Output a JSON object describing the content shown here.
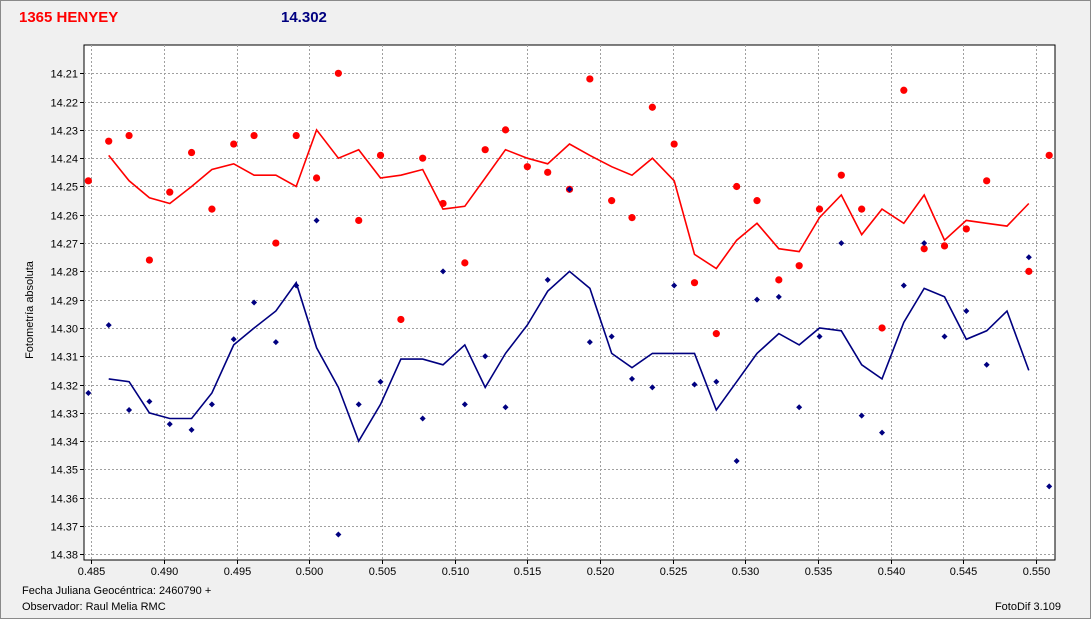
{
  "header": {
    "star_name": "1365 HENYEY",
    "reference_mag": "14.302"
  },
  "footer": {
    "jd_label": "Fecha Juliana Geocéntrica: 2460790 +",
    "observer_label": "Observador: Raul Melia RMC",
    "software_label": "FotoDif 3.109"
  },
  "colors": {
    "red_series": "#ff0000",
    "blue_series": "#000080",
    "grid": "#a0a0a0",
    "plot_background": "#ffffff"
  },
  "chart_data": {
    "type": "scatter",
    "title": "",
    "xlabel": "",
    "ylabel": "Fotometría absoluta",
    "xlim": [
      0.4845,
      0.5513
    ],
    "ylim": [
      14.2,
      14.382
    ],
    "y_inverted": true,
    "grid": true,
    "x_ticks": [
      "0.485",
      "0.490",
      "0.495",
      "0.500",
      "0.505",
      "0.510",
      "0.515",
      "0.520",
      "0.525",
      "0.530",
      "0.535",
      "0.540",
      "0.545",
      "0.550"
    ],
    "y_ticks": [
      "14.21",
      "14.22",
      "14.23",
      "14.24",
      "14.25",
      "14.26",
      "14.27",
      "14.28",
      "14.29",
      "14.30",
      "14.31",
      "14.32",
      "14.33",
      "14.34",
      "14.35",
      "14.36",
      "14.37",
      "14.38"
    ],
    "series": [
      {
        "color": "#ff0000",
        "marker": "circle",
        "points": [
          [
            0.4848,
            14.248
          ],
          [
            0.4862,
            14.234
          ],
          [
            0.4876,
            14.232
          ],
          [
            0.489,
            14.276
          ],
          [
            0.4904,
            14.252
          ],
          [
            0.4919,
            14.238
          ],
          [
            0.4933,
            14.258
          ],
          [
            0.4948,
            14.235
          ],
          [
            0.4962,
            14.232
          ],
          [
            0.4977,
            14.27
          ],
          [
            0.4991,
            14.232
          ],
          [
            0.5005,
            14.247
          ],
          [
            0.502,
            14.21
          ],
          [
            0.5034,
            14.262
          ],
          [
            0.5049,
            14.239
          ],
          [
            0.5063,
            14.297
          ],
          [
            0.5078,
            14.24
          ],
          [
            0.5092,
            14.256
          ],
          [
            0.5107,
            14.277
          ],
          [
            0.5121,
            14.237
          ],
          [
            0.5135,
            14.23
          ],
          [
            0.515,
            14.243
          ],
          [
            0.5164,
            14.245
          ],
          [
            0.5179,
            14.251
          ],
          [
            0.5193,
            14.212
          ],
          [
            0.5208,
            14.255
          ],
          [
            0.5222,
            14.261
          ],
          [
            0.5236,
            14.222
          ],
          [
            0.5251,
            14.235
          ],
          [
            0.5265,
            14.284
          ],
          [
            0.528,
            14.302
          ],
          [
            0.5294,
            14.25
          ],
          [
            0.5308,
            14.255
          ],
          [
            0.5323,
            14.283
          ],
          [
            0.5337,
            14.278
          ],
          [
            0.5351,
            14.258
          ],
          [
            0.5366,
            14.246
          ],
          [
            0.538,
            14.258
          ],
          [
            0.5394,
            14.3
          ],
          [
            0.5409,
            14.216
          ],
          [
            0.5423,
            14.272
          ],
          [
            0.5437,
            14.271
          ],
          [
            0.5452,
            14.265
          ],
          [
            0.5466,
            14.248
          ],
          [
            0.5495,
            14.28
          ],
          [
            0.5509,
            14.239
          ]
        ],
        "trend": [
          [
            0.4862,
            14.239
          ],
          [
            0.4876,
            14.248
          ],
          [
            0.489,
            14.254
          ],
          [
            0.4904,
            14.256
          ],
          [
            0.4919,
            14.25
          ],
          [
            0.4933,
            14.244
          ],
          [
            0.4948,
            14.242
          ],
          [
            0.4962,
            14.246
          ],
          [
            0.4977,
            14.246
          ],
          [
            0.4991,
            14.25
          ],
          [
            0.5005,
            14.23
          ],
          [
            0.502,
            14.24
          ],
          [
            0.5034,
            14.237
          ],
          [
            0.5049,
            14.247
          ],
          [
            0.5063,
            14.246
          ],
          [
            0.5078,
            14.244
          ],
          [
            0.5092,
            14.258
          ],
          [
            0.5107,
            14.257
          ],
          [
            0.5121,
            14.247
          ],
          [
            0.5135,
            14.237
          ],
          [
            0.515,
            14.24
          ],
          [
            0.5164,
            14.242
          ],
          [
            0.5179,
            14.235
          ],
          [
            0.5193,
            14.239
          ],
          [
            0.5208,
            14.243
          ],
          [
            0.5222,
            14.246
          ],
          [
            0.5236,
            14.24
          ],
          [
            0.5251,
            14.248
          ],
          [
            0.5265,
            14.274
          ],
          [
            0.528,
            14.279
          ],
          [
            0.5294,
            14.269
          ],
          [
            0.5308,
            14.263
          ],
          [
            0.5323,
            14.272
          ],
          [
            0.5337,
            14.273
          ],
          [
            0.5351,
            14.261
          ],
          [
            0.5366,
            14.253
          ],
          [
            0.538,
            14.267
          ],
          [
            0.5394,
            14.258
          ],
          [
            0.5409,
            14.263
          ],
          [
            0.5423,
            14.253
          ],
          [
            0.5437,
            14.269
          ],
          [
            0.5452,
            14.262
          ],
          [
            0.5466,
            14.263
          ],
          [
            0.548,
            14.264
          ],
          [
            0.5495,
            14.256
          ]
        ]
      },
      {
        "color": "#000080",
        "marker": "diamond",
        "points": [
          [
            0.4848,
            14.323
          ],
          [
            0.4862,
            14.299
          ],
          [
            0.4876,
            14.329
          ],
          [
            0.489,
            14.326
          ],
          [
            0.4904,
            14.334
          ],
          [
            0.4919,
            14.336
          ],
          [
            0.4933,
            14.327
          ],
          [
            0.4948,
            14.304
          ],
          [
            0.4962,
            14.291
          ],
          [
            0.4977,
            14.305
          ],
          [
            0.4991,
            14.285
          ],
          [
            0.5005,
            14.262
          ],
          [
            0.502,
            14.373
          ],
          [
            0.5034,
            14.327
          ],
          [
            0.5049,
            14.319
          ],
          [
            0.5078,
            14.332
          ],
          [
            0.5092,
            14.28
          ],
          [
            0.5107,
            14.327
          ],
          [
            0.5121,
            14.31
          ],
          [
            0.5135,
            14.328
          ],
          [
            0.5164,
            14.283
          ],
          [
            0.5179,
            14.251
          ],
          [
            0.5193,
            14.305
          ],
          [
            0.5208,
            14.303
          ],
          [
            0.5222,
            14.318
          ],
          [
            0.5236,
            14.321
          ],
          [
            0.5251,
            14.285
          ],
          [
            0.5265,
            14.32
          ],
          [
            0.528,
            14.319
          ],
          [
            0.5294,
            14.347
          ],
          [
            0.5308,
            14.29
          ],
          [
            0.5323,
            14.289
          ],
          [
            0.5337,
            14.328
          ],
          [
            0.5351,
            14.303
          ],
          [
            0.5366,
            14.27
          ],
          [
            0.538,
            14.331
          ],
          [
            0.5394,
            14.337
          ],
          [
            0.5409,
            14.285
          ],
          [
            0.5423,
            14.27
          ],
          [
            0.5437,
            14.303
          ],
          [
            0.5452,
            14.294
          ],
          [
            0.5466,
            14.313
          ],
          [
            0.5495,
            14.275
          ],
          [
            0.5509,
            14.356
          ]
        ],
        "trend": [
          [
            0.4862,
            14.318
          ],
          [
            0.4876,
            14.319
          ],
          [
            0.489,
            14.33
          ],
          [
            0.4904,
            14.332
          ],
          [
            0.4919,
            14.332
          ],
          [
            0.4933,
            14.323
          ],
          [
            0.4948,
            14.306
          ],
          [
            0.4962,
            14.3
          ],
          [
            0.4977,
            14.294
          ],
          [
            0.4991,
            14.284
          ],
          [
            0.5005,
            14.307
          ],
          [
            0.502,
            14.321
          ],
          [
            0.5034,
            14.34
          ],
          [
            0.5049,
            14.327
          ],
          [
            0.5063,
            14.311
          ],
          [
            0.5078,
            14.311
          ],
          [
            0.5092,
            14.313
          ],
          [
            0.5107,
            14.306
          ],
          [
            0.5121,
            14.321
          ],
          [
            0.5135,
            14.309
          ],
          [
            0.515,
            14.299
          ],
          [
            0.5164,
            14.287
          ],
          [
            0.5179,
            14.28
          ],
          [
            0.5193,
            14.286
          ],
          [
            0.5208,
            14.309
          ],
          [
            0.5222,
            14.314
          ],
          [
            0.5236,
            14.309
          ],
          [
            0.5251,
            14.309
          ],
          [
            0.5265,
            14.309
          ],
          [
            0.528,
            14.329
          ],
          [
            0.5294,
            14.319
          ],
          [
            0.5308,
            14.309
          ],
          [
            0.5323,
            14.302
          ],
          [
            0.5337,
            14.306
          ],
          [
            0.5351,
            14.3
          ],
          [
            0.5366,
            14.301
          ],
          [
            0.538,
            14.313
          ],
          [
            0.5394,
            14.318
          ],
          [
            0.5409,
            14.298
          ],
          [
            0.5423,
            14.286
          ],
          [
            0.5437,
            14.289
          ],
          [
            0.5452,
            14.304
          ],
          [
            0.5466,
            14.301
          ],
          [
            0.548,
            14.294
          ],
          [
            0.5495,
            14.315
          ]
        ]
      }
    ]
  }
}
